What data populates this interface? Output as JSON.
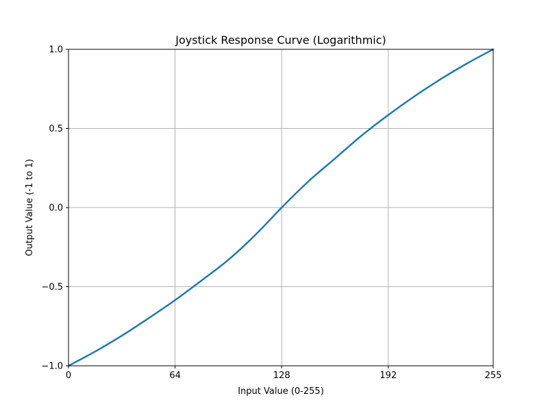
{
  "chart_data": {
    "type": "line",
    "title": "Joystick Response Curve (Logarithmic)",
    "xlabel": "Input Value (0-255)",
    "ylabel": "Output Value (-1 to 1)",
    "xlim": [
      0,
      255
    ],
    "ylim": [
      -1.0,
      1.0
    ],
    "xticks": [
      0,
      64,
      128,
      192,
      255
    ],
    "xtick_labels": [
      "0",
      "64",
      "128",
      "192",
      "255"
    ],
    "yticks": [
      -1.0,
      -0.5,
      0.0,
      0.5,
      1.0
    ],
    "ytick_labels": [
      "−1.0",
      "−0.5",
      "0.0",
      "0.5",
      "1.0"
    ],
    "grid": true,
    "series": [
      {
        "color": "#1f77b4",
        "x": [
          0,
          16,
          32,
          48,
          64,
          80,
          96,
          112,
          128,
          144,
          160,
          176,
          192,
          208,
          224,
          240,
          255
        ],
        "y": [
          -1.0,
          -0.91,
          -0.81,
          -0.7,
          -0.585,
          -0.46,
          -0.33,
          -0.175,
          0.0,
          0.165,
          0.31,
          0.455,
          0.585,
          0.705,
          0.815,
          0.915,
          1.0
        ]
      }
    ]
  }
}
